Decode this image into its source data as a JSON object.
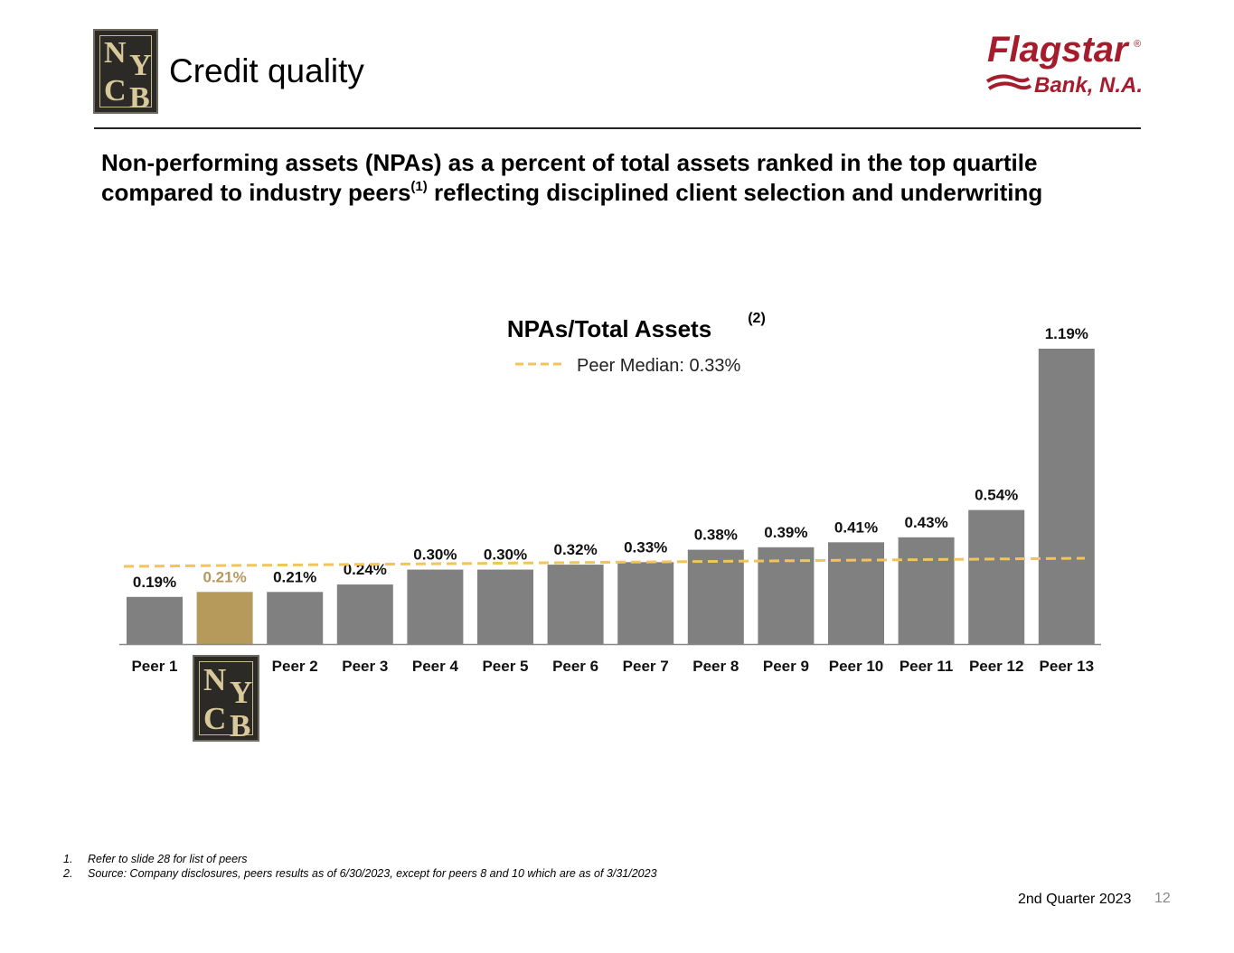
{
  "header": {
    "title": "Credit quality",
    "brand": {
      "logo_left_text": "NYCB",
      "logo_right_top": "Flagstar",
      "logo_right_bottom": "Bank, N.A.",
      "logo_right_mark": "®"
    }
  },
  "headline": {
    "line1": "Non-performing assets (NPAs) as a percent of total assets ranked in the top quartile",
    "line2a": "compared to industry peers",
    "line2_sup": "(1)",
    "line2b": " reflecting disciplined client selection and underwriting"
  },
  "chart_data": {
    "type": "bar",
    "title": "NPAs/Total Assets",
    "title_note": "(2)",
    "categories": [
      "Peer 1",
      "NYCB",
      "Peer 2",
      "Peer 3",
      "Peer 4",
      "Peer 5",
      "Peer 6",
      "Peer 7",
      "Peer 8",
      "Peer 9",
      "Peer 10",
      "Peer 11",
      "Peer 12",
      "Peer 13"
    ],
    "category_labels": [
      "Peer 1",
      "",
      "Peer 2",
      "Peer 3",
      "Peer 4",
      "Peer 5",
      "Peer 6",
      "Peer 7",
      "Peer 8",
      "Peer 9",
      "Peer 10",
      "Peer 11",
      "Peer 12",
      "Peer 13"
    ],
    "values": [
      0.19,
      0.21,
      0.21,
      0.24,
      0.3,
      0.3,
      0.32,
      0.33,
      0.38,
      0.39,
      0.41,
      0.43,
      0.54,
      1.19
    ],
    "data_labels": [
      "0.19%",
      "0.21%",
      "0.21%",
      "0.24%",
      "0.30%",
      "0.30%",
      "0.32%",
      "0.33%",
      "0.38%",
      "0.39%",
      "0.41%",
      "0.43%",
      "0.54%",
      "1.19%"
    ],
    "highlight_index": 1,
    "ylim": [
      0,
      1.19
    ],
    "median": {
      "label": "Peer Median: 0.33%",
      "value": 0.33
    },
    "xlabel": "",
    "ylabel": "",
    "grid": false,
    "legend_position": "top-center",
    "colors": {
      "bar": "#808080",
      "highlight": "#b59a5c",
      "highlight_label": "#b59a5c",
      "median_line": "#f2c45a"
    }
  },
  "footnotes": [
    {
      "num": "1.",
      "text": "Refer to slide 28 for list of peers"
    },
    {
      "num": "2.",
      "text": "Source: Company disclosures, peers results as of 6/30/2023, except for peers 8 and 10 which are as of 3/31/2023"
    }
  ],
  "footer": {
    "period": "2nd Quarter 2023",
    "page_number": "12"
  }
}
